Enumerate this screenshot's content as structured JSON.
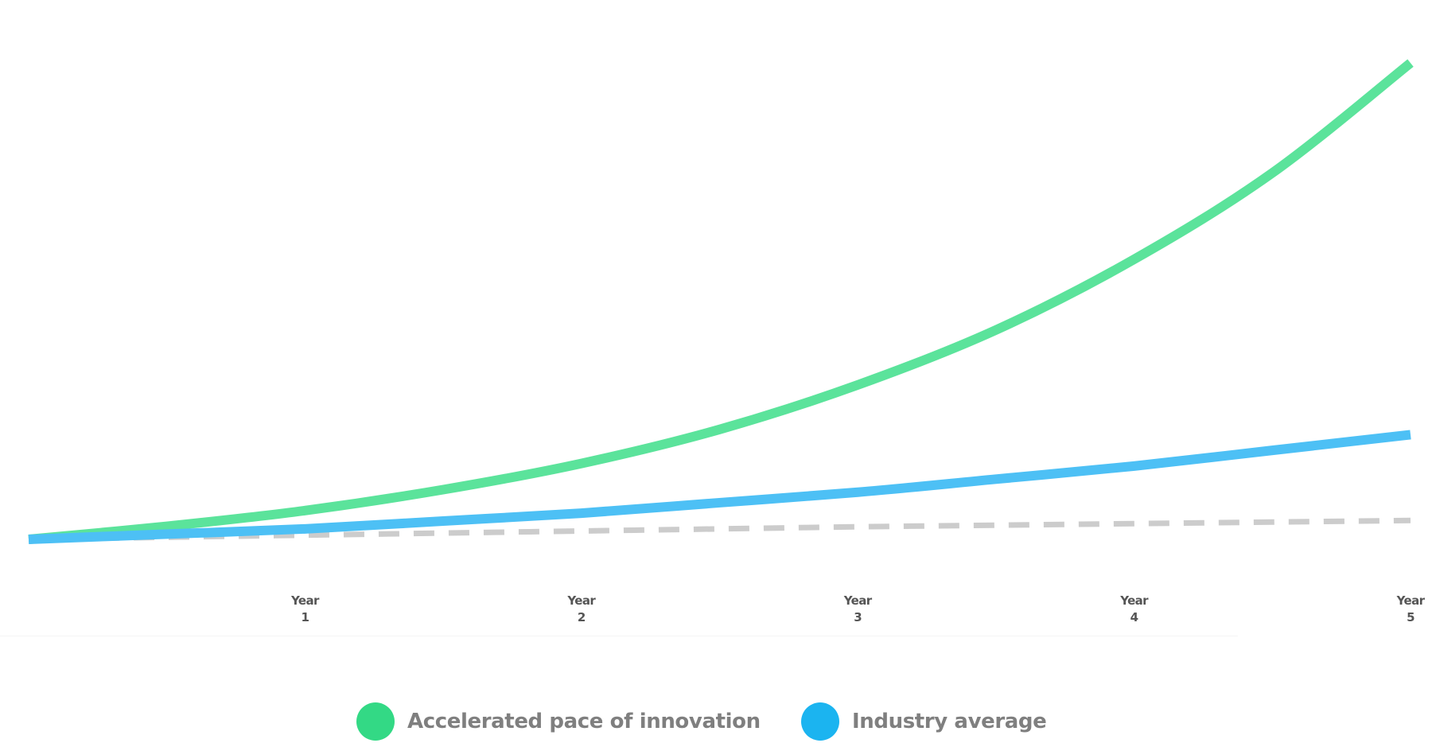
{
  "chart_data": {
    "type": "line",
    "title": "",
    "xlabel": "",
    "ylabel": "",
    "x": [
      0,
      0.5,
      1,
      1.5,
      2,
      2.5,
      3,
      3.5,
      4,
      4.5,
      5
    ],
    "x_ticks": [
      {
        "value": 1,
        "label_top": "Year",
        "label_bottom": "1"
      },
      {
        "value": 2,
        "label_top": "Year",
        "label_bottom": "2"
      },
      {
        "value": 3,
        "label_top": "Year",
        "label_bottom": "3"
      },
      {
        "value": 4,
        "label_top": "Year",
        "label_bottom": "4"
      },
      {
        "value": 5,
        "label_top": "Year",
        "label_bottom": "5"
      }
    ],
    "xlim": [
      0,
      5
    ],
    "ylim": [
      0,
      10
    ],
    "grid": false,
    "legend_position": "bottom-center",
    "series": [
      {
        "name": "Accelerated pace of innovation",
        "color": "#5BE39B",
        "style": "solid",
        "values": [
          0,
          0.25,
          0.55,
          0.95,
          1.45,
          2.1,
          2.95,
          4.0,
          5.35,
          7.0,
          9.1
        ]
      },
      {
        "name": "Industry average",
        "color": "#4DC0F5",
        "style": "solid",
        "values": [
          0,
          0.1,
          0.2,
          0.35,
          0.5,
          0.7,
          0.9,
          1.15,
          1.4,
          1.7,
          2.0
        ]
      },
      {
        "name": "",
        "color": "#CCCCCC",
        "style": "dashed",
        "values": [
          0,
          0.04,
          0.08,
          0.12,
          0.16,
          0.2,
          0.24,
          0.27,
          0.3,
          0.33,
          0.36
        ]
      }
    ]
  },
  "legend": {
    "items": [
      {
        "label": "Accelerated pace of innovation",
        "color": "#33D985"
      },
      {
        "label": "Industry average",
        "color": "#1BB4F0"
      }
    ]
  }
}
